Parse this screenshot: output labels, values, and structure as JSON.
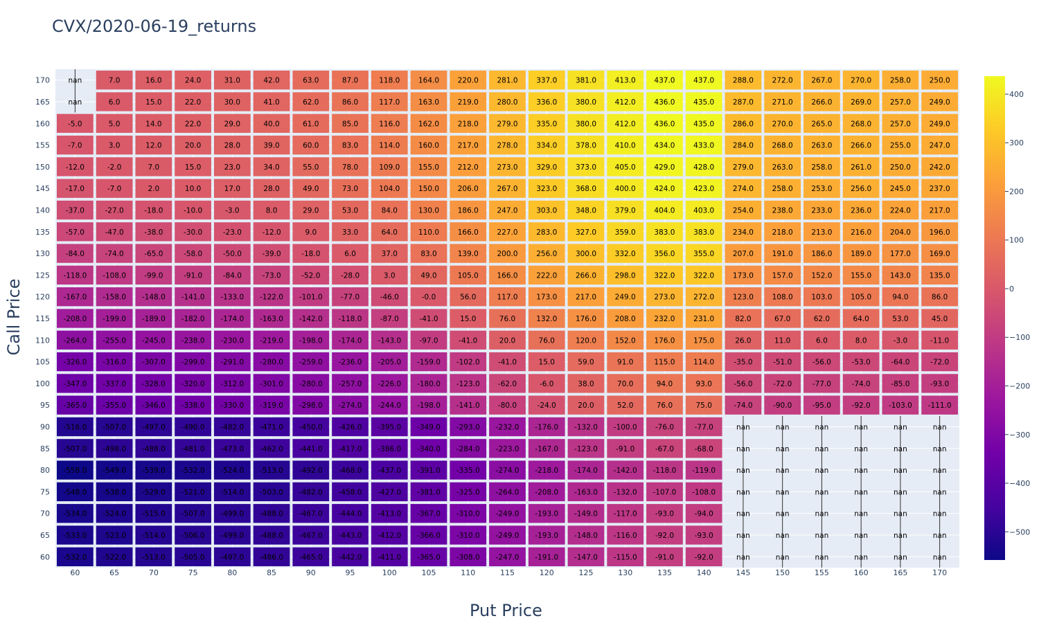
{
  "chart_data": {
    "type": "heatmap",
    "title": "CVX/2020-06-19_returns",
    "xlabel": "Put Price",
    "ylabel": "Call Price",
    "x": [
      60,
      65,
      70,
      75,
      80,
      85,
      90,
      95,
      100,
      105,
      110,
      115,
      120,
      125,
      130,
      135,
      140,
      145,
      150,
      155,
      160,
      165,
      170
    ],
    "y": [
      170,
      165,
      160,
      155,
      150,
      145,
      140,
      135,
      130,
      125,
      120,
      115,
      110,
      105,
      100,
      95,
      90,
      85,
      80,
      75,
      70,
      65,
      60
    ],
    "text": [
      [
        "nan",
        "7.0",
        "16.0",
        "24.0",
        "31.0",
        "42.0",
        "63.0",
        "87.0",
        "118.0",
        "164.0",
        "220.0",
        "281.0",
        "337.0",
        "381.0",
        "413.0",
        "437.0",
        "437.0",
        "288.0",
        "272.0",
        "267.0",
        "270.0",
        "258.0",
        "250.0"
      ],
      [
        "nan",
        "6.0",
        "15.0",
        "22.0",
        "30.0",
        "41.0",
        "62.0",
        "86.0",
        "117.0",
        "163.0",
        "219.0",
        "280.0",
        "336.0",
        "380.0",
        "412.0",
        "436.0",
        "435.0",
        "287.0",
        "271.0",
        "266.0",
        "269.0",
        "257.0",
        "249.0"
      ],
      [
        "-5.0",
        "5.0",
        "14.0",
        "22.0",
        "29.0",
        "40.0",
        "61.0",
        "85.0",
        "116.0",
        "162.0",
        "218.0",
        "279.0",
        "335.0",
        "380.0",
        "412.0",
        "436.0",
        "435.0",
        "286.0",
        "270.0",
        "265.0",
        "268.0",
        "257.0",
        "249.0"
      ],
      [
        "-7.0",
        "3.0",
        "12.0",
        "20.0",
        "28.0",
        "39.0",
        "60.0",
        "83.0",
        "114.0",
        "160.0",
        "217.0",
        "278.0",
        "334.0",
        "378.0",
        "410.0",
        "434.0",
        "433.0",
        "284.0",
        "268.0",
        "263.0",
        "266.0",
        "255.0",
        "247.0"
      ],
      [
        "-12.0",
        "-2.0",
        "7.0",
        "15.0",
        "23.0",
        "34.0",
        "55.0",
        "78.0",
        "109.0",
        "155.0",
        "212.0",
        "273.0",
        "329.0",
        "373.0",
        "405.0",
        "429.0",
        "428.0",
        "279.0",
        "263.0",
        "258.0",
        "261.0",
        "250.0",
        "242.0"
      ],
      [
        "-17.0",
        "-7.0",
        "2.0",
        "10.0",
        "17.0",
        "28.0",
        "49.0",
        "73.0",
        "104.0",
        "150.0",
        "206.0",
        "267.0",
        "323.0",
        "368.0",
        "400.0",
        "424.0",
        "423.0",
        "274.0",
        "258.0",
        "253.0",
        "256.0",
        "245.0",
        "237.0"
      ],
      [
        "-37.0",
        "-27.0",
        "-18.0",
        "-10.0",
        "-3.0",
        "8.0",
        "29.0",
        "53.0",
        "84.0",
        "130.0",
        "186.0",
        "247.0",
        "303.0",
        "348.0",
        "379.0",
        "404.0",
        "403.0",
        "254.0",
        "238.0",
        "233.0",
        "236.0",
        "224.0",
        "217.0"
      ],
      [
        "-57.0",
        "-47.0",
        "-38.0",
        "-30.0",
        "-23.0",
        "-12.0",
        "9.0",
        "33.0",
        "64.0",
        "110.0",
        "166.0",
        "227.0",
        "283.0",
        "327.0",
        "359.0",
        "383.0",
        "383.0",
        "234.0",
        "218.0",
        "213.0",
        "216.0",
        "204.0",
        "196.0"
      ],
      [
        "-84.0",
        "-74.0",
        "-65.0",
        "-58.0",
        "-50.0",
        "-39.0",
        "-18.0",
        "6.0",
        "37.0",
        "83.0",
        "139.0",
        "200.0",
        "256.0",
        "300.0",
        "332.0",
        "356.0",
        "355.0",
        "207.0",
        "191.0",
        "186.0",
        "189.0",
        "177.0",
        "169.0"
      ],
      [
        "-118.0",
        "-108.0",
        "-99.0",
        "-91.0",
        "-84.0",
        "-73.0",
        "-52.0",
        "-28.0",
        "3.0",
        "49.0",
        "105.0",
        "166.0",
        "222.0",
        "266.0",
        "298.0",
        "322.0",
        "322.0",
        "173.0",
        "157.0",
        "152.0",
        "155.0",
        "143.0",
        "135.0"
      ],
      [
        "-167.0",
        "-158.0",
        "-148.0",
        "-141.0",
        "-133.0",
        "-122.0",
        "-101.0",
        "-77.0",
        "-46.0",
        "-0.0",
        "56.0",
        "117.0",
        "173.0",
        "217.0",
        "249.0",
        "273.0",
        "272.0",
        "123.0",
        "108.0",
        "103.0",
        "105.0",
        "94.0",
        "86.0"
      ],
      [
        "-208.0",
        "-199.0",
        "-189.0",
        "-182.0",
        "-174.0",
        "-163.0",
        "-142.0",
        "-118.0",
        "-87.0",
        "-41.0",
        "15.0",
        "76.0",
        "132.0",
        "176.0",
        "208.0",
        "232.0",
        "231.0",
        "82.0",
        "67.0",
        "62.0",
        "64.0",
        "53.0",
        "45.0"
      ],
      [
        "-264.0",
        "-255.0",
        "-245.0",
        "-238.0",
        "-230.0",
        "-219.0",
        "-198.0",
        "-174.0",
        "-143.0",
        "-97.0",
        "-41.0",
        "20.0",
        "76.0",
        "120.0",
        "152.0",
        "176.0",
        "175.0",
        "26.0",
        "11.0",
        "6.0",
        "8.0",
        "-3.0",
        "-11.0"
      ],
      [
        "-326.0",
        "-316.0",
        "-307.0",
        "-299.0",
        "-291.0",
        "-280.0",
        "-259.0",
        "-236.0",
        "-205.0",
        "-159.0",
        "-102.0",
        "-41.0",
        "15.0",
        "59.0",
        "91.0",
        "115.0",
        "114.0",
        "-35.0",
        "-51.0",
        "-56.0",
        "-53.0",
        "-64.0",
        "-72.0"
      ],
      [
        "-347.0",
        "-337.0",
        "-328.0",
        "-320.0",
        "-312.0",
        "-301.0",
        "-280.0",
        "-257.0",
        "-226.0",
        "-180.0",
        "-123.0",
        "-62.0",
        "-6.0",
        "38.0",
        "70.0",
        "94.0",
        "93.0",
        "-56.0",
        "-72.0",
        "-77.0",
        "-74.0",
        "-85.0",
        "-93.0"
      ],
      [
        "-365.0",
        "-355.0",
        "-346.0",
        "-338.0",
        "-330.0",
        "-319.0",
        "-298.0",
        "-274.0",
        "-244.0",
        "-198.0",
        "-141.0",
        "-80.0",
        "-24.0",
        "20.0",
        "52.0",
        "76.0",
        "75.0",
        "-74.0",
        "-90.0",
        "-95.0",
        "-92.0",
        "-103.0",
        "-111.0"
      ],
      [
        "-516.0",
        "-507.0",
        "-497.0",
        "-490.0",
        "-482.0",
        "-471.0",
        "-450.0",
        "-426.0",
        "-395.0",
        "-349.0",
        "-293.0",
        "-232.0",
        "-176.0",
        "-132.0",
        "-100.0",
        "-76.0",
        "-77.0",
        "nan",
        "nan",
        "nan",
        "nan",
        "nan",
        "nan"
      ],
      [
        "-507.0",
        "-498.0",
        "-488.0",
        "-481.0",
        "-473.0",
        "-462.0",
        "-441.0",
        "-417.0",
        "-386.0",
        "-340.0",
        "-284.0",
        "-223.0",
        "-167.0",
        "-123.0",
        "-91.0",
        "-67.0",
        "-68.0",
        "nan",
        "nan",
        "nan",
        "nan",
        "nan",
        "nan"
      ],
      [
        "-558.0",
        "-549.0",
        "-539.0",
        "-532.0",
        "-524.0",
        "-513.0",
        "-492.0",
        "-468.0",
        "-437.0",
        "-391.0",
        "-335.0",
        "-274.0",
        "-218.0",
        "-174.0",
        "-142.0",
        "-118.0",
        "-119.0",
        "nan",
        "nan",
        "nan",
        "nan",
        "nan",
        "nan"
      ],
      [
        "-548.0",
        "-538.0",
        "-529.0",
        "-521.0",
        "-514.0",
        "-503.0",
        "-482.0",
        "-458.0",
        "-427.0",
        "-381.0",
        "-325.0",
        "-264.0",
        "-208.0",
        "-163.0",
        "-132.0",
        "-107.0",
        "-108.0",
        "nan",
        "nan",
        "nan",
        "nan",
        "nan",
        "nan"
      ],
      [
        "-534.0",
        "-524.0",
        "-515.0",
        "-507.0",
        "-499.0",
        "-488.0",
        "-467.0",
        "-444.0",
        "-413.0",
        "-367.0",
        "-310.0",
        "-249.0",
        "-193.0",
        "-149.0",
        "-117.0",
        "-93.0",
        "-94.0",
        "nan",
        "nan",
        "nan",
        "nan",
        "nan",
        "nan"
      ],
      [
        "-533.0",
        "-523.0",
        "-514.0",
        "-506.0",
        "-499.0",
        "-488.0",
        "-467.0",
        "-443.0",
        "-412.0",
        "-366.0",
        "-310.0",
        "-249.0",
        "-193.0",
        "-148.0",
        "-116.0",
        "-92.0",
        "-93.0",
        "nan",
        "nan",
        "nan",
        "nan",
        "nan",
        "nan"
      ],
      [
        "-532.0",
        "-522.0",
        "-513.0",
        "-505.0",
        "-497.0",
        "-486.0",
        "-465.0",
        "-442.0",
        "-411.0",
        "-365.0",
        "-308.0",
        "-247.0",
        "-191.0",
        "-147.0",
        "-115.0",
        "-91.0",
        "-92.0",
        "nan",
        "nan",
        "nan",
        "nan",
        "nan",
        "nan"
      ]
    ],
    "colorscale": [
      "#0d0887",
      "#46039f",
      "#7201a8",
      "#9c179e",
      "#bd3786",
      "#d8576b",
      "#ed7953",
      "#fb9f3a",
      "#fdca26",
      "#f0f921"
    ],
    "zmin": -558,
    "zmax": 437,
    "colorbar_ticks": [
      400,
      300,
      200,
      100,
      0,
      -100,
      -200,
      -300,
      -400,
      -500
    ],
    "colorbar_tick_labels": [
      "400",
      "300",
      "200",
      "100",
      "0",
      "−100",
      "−200",
      "−300",
      "−400",
      "−500"
    ],
    "colorbar_position": "right",
    "plot_background": "#e5ecf6"
  }
}
